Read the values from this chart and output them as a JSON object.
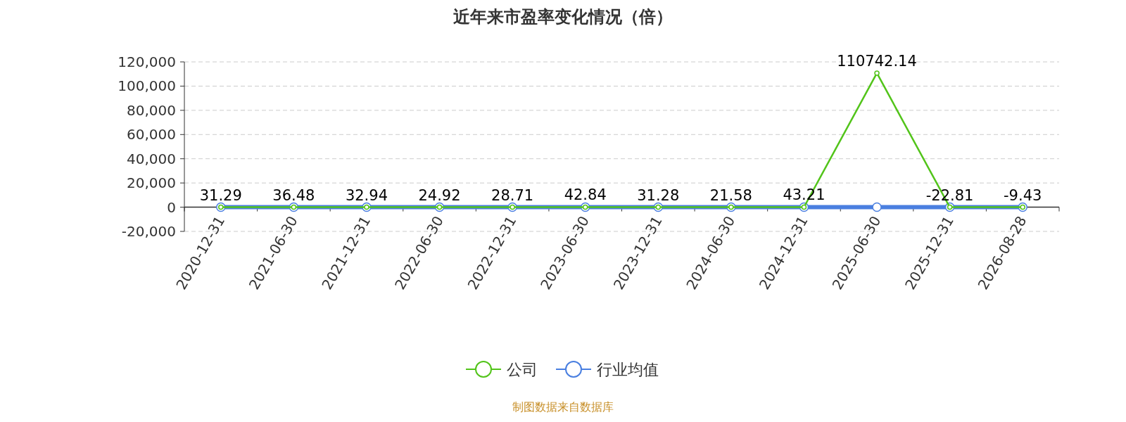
{
  "chart_data": {
    "type": "line",
    "title": "近年来市盈率变化情况（倍）",
    "categories": [
      "2020-12-31",
      "2021-06-30",
      "2021-12-31",
      "2022-06-30",
      "2022-12-31",
      "2023-06-30",
      "2023-12-31",
      "2024-06-30",
      "2024-12-31",
      "2025-06-30",
      "2025-12-31",
      "2026-08-28"
    ],
    "series": [
      {
        "name": "公司",
        "color": "#52c41a",
        "values": [
          31.29,
          36.48,
          32.94,
          24.92,
          28.71,
          42.84,
          31.28,
          21.58,
          43.21,
          110742.14,
          -22.81,
          -9.43
        ],
        "value_labels": [
          "31.29",
          "36.48",
          "32.94",
          "24.92",
          "28.71",
          "42.84",
          "31.28",
          "21.58",
          "43.21",
          "110742.14",
          "-22.81",
          "-9.43"
        ]
      },
      {
        "name": "行业均值",
        "color": "#4a7fe0",
        "values": [
          0,
          0,
          0,
          0,
          0,
          0,
          0,
          0,
          0,
          0,
          0,
          0
        ]
      }
    ],
    "ylim": [
      -20000,
      120000
    ],
    "yticks": [
      {
        "value": -20000,
        "label": "-20,000"
      },
      0,
      {
        "value": 20000,
        "label": "20,000"
      },
      {
        "value": 40000,
        "label": "40,000"
      },
      {
        "value": 60000,
        "label": "60,000"
      },
      {
        "value": 80000,
        "label": "80,000"
      },
      {
        "value": 100000,
        "label": "100,000"
      },
      {
        "value": 120000,
        "label": "120,000"
      }
    ],
    "grid": "y",
    "legend": "bottom",
    "marker": "circle",
    "line_style": "solid",
    "annotations": [
      "制图数据来自数据库"
    ]
  }
}
